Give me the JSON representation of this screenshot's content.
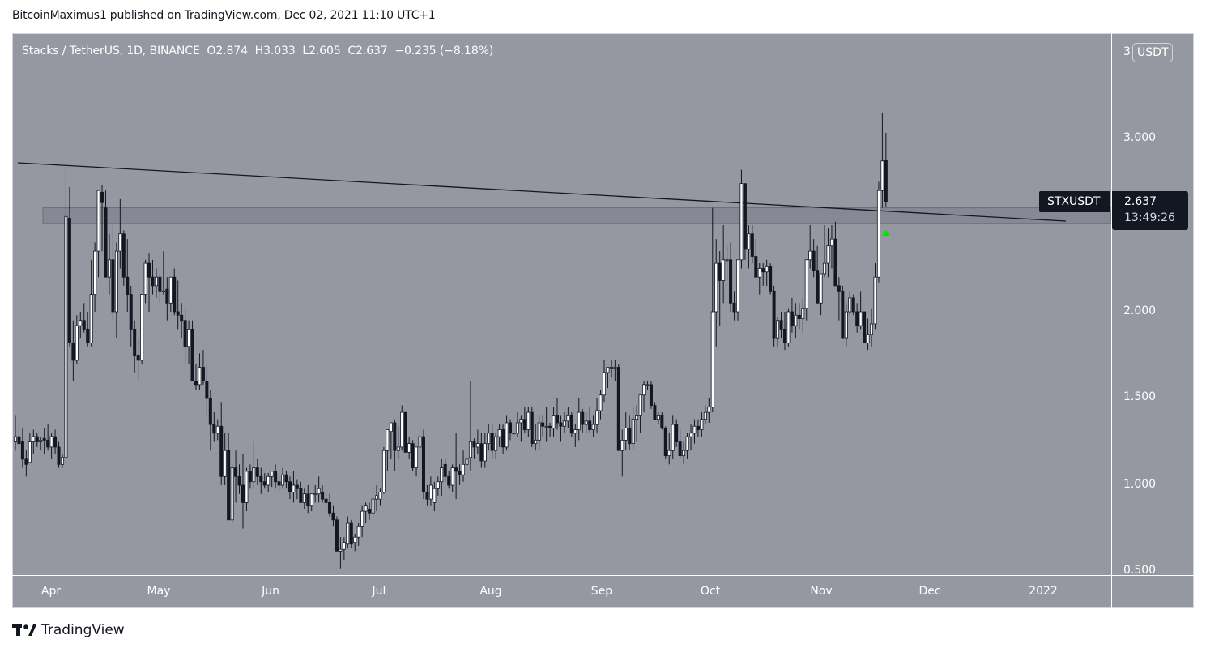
{
  "header": {
    "published": "BitcoinMaximus1 published on TradingView.com, Dec 02, 2021 11:10 UTC+1"
  },
  "legend": {
    "title": "Stacks / TetherUS, 1D, BINANCE",
    "o_label": "O",
    "o": "2.874",
    "h_label": "H",
    "h": "3.033",
    "l_label": "L",
    "l": "2.605",
    "c_label": "C",
    "c": "2.637",
    "change": "−0.235 (−8.18%)"
  },
  "price_axis": {
    "currency_label": "USDT",
    "currency_prefix": "3",
    "ticks": [
      "3.000",
      "2.000",
      "1.500",
      "1.000",
      "0.500"
    ]
  },
  "time_axis": {
    "ticks": [
      "Apr",
      "May",
      "Jun",
      "Jul",
      "Aug",
      "Sep",
      "Oct",
      "Nov",
      "Dec",
      "2022"
    ]
  },
  "price_tag": {
    "symbol": "STXUSDT",
    "price": "2.637",
    "countdown": "13:49:26"
  },
  "brand": {
    "logo": "TV",
    "name": "TradingView"
  },
  "colors": {
    "background": "#9598a1",
    "up_candle": "#ffffff",
    "down_candle": "#131722",
    "wick": "#131722",
    "zone_fill": "#868993",
    "arrow": "#00e600"
  },
  "chart_data": {
    "type": "candlestick",
    "title": "Stacks / TetherUS, 1D, BINANCE",
    "xlabel": "",
    "ylabel": "USDT",
    "ylim": [
      0.48,
      3.55
    ],
    "x_ticks": [
      "Apr",
      "May",
      "Jun",
      "Jul",
      "Aug",
      "Sep",
      "Oct",
      "Nov",
      "Dec",
      "2022"
    ],
    "y_ticks": [
      0.5,
      1.0,
      1.5,
      2.0,
      3.0
    ],
    "last": {
      "open": 2.874,
      "high": 3.033,
      "low": 2.605,
      "close": 2.637,
      "change": -0.235,
      "change_pct": -8.18
    },
    "annotations": [
      {
        "type": "descending_trendline",
        "from": {
          "date": "2021-03-20",
          "price": 2.83
        },
        "to": {
          "date": "2022-01-07",
          "price": 2.51
        }
      },
      {
        "type": "horizontal_zone",
        "from_date": "2021-03-29",
        "price_low": 2.51,
        "price_high": 2.6
      },
      {
        "type": "arrow_up",
        "date": "2021-12-02",
        "price": 2.48,
        "color": "#00e600"
      }
    ],
    "candles": [
      [
        1.25,
        1.4,
        1.2,
        1.28
      ],
      [
        1.28,
        1.37,
        1.22,
        1.24
      ],
      [
        1.25,
        1.33,
        1.1,
        1.15
      ],
      [
        1.15,
        1.2,
        1.05,
        1.12
      ],
      [
        1.13,
        1.3,
        1.13,
        1.25
      ],
      [
        1.25,
        1.32,
        1.18,
        1.28
      ],
      [
        1.28,
        1.3,
        1.22,
        1.25
      ],
      [
        1.25,
        1.28,
        1.2,
        1.26
      ],
      [
        1.27,
        1.33,
        1.18,
        1.26
      ],
      [
        1.26,
        1.35,
        1.2,
        1.22
      ],
      [
        1.22,
        1.3,
        1.15,
        1.28
      ],
      [
        1.28,
        1.32,
        1.18,
        1.22
      ],
      [
        1.22,
        1.25,
        1.1,
        1.12
      ],
      [
        1.12,
        1.18,
        1.1,
        1.16
      ],
      [
        1.16,
        2.85,
        1.12,
        2.55
      ],
      [
        2.54,
        2.72,
        1.8,
        1.82
      ],
      [
        1.82,
        1.95,
        1.6,
        1.72
      ],
      [
        1.72,
        1.98,
        1.7,
        1.92
      ],
      [
        1.92,
        2.0,
        1.85,
        1.95
      ],
      [
        1.95,
        2.05,
        1.88,
        1.9
      ],
      [
        1.9,
        2.0,
        1.8,
        1.82
      ],
      [
        1.82,
        2.3,
        1.8,
        2.1
      ],
      [
        2.1,
        2.4,
        2.0,
        2.35
      ],
      [
        2.35,
        2.65,
        2.2,
        2.7
      ],
      [
        2.69,
        2.73,
        2.35,
        2.63
      ],
      [
        2.6,
        2.7,
        2.2,
        2.2
      ],
      [
        2.2,
        2.45,
        2.1,
        2.3
      ],
      [
        2.3,
        2.5,
        1.95,
        2.0
      ],
      [
        2.0,
        2.4,
        1.85,
        2.35
      ],
      [
        2.35,
        2.65,
        2.25,
        2.45
      ],
      [
        2.45,
        2.47,
        2.15,
        2.2
      ],
      [
        2.2,
        2.42,
        2.0,
        2.1
      ],
      [
        2.1,
        2.15,
        1.8,
        1.9
      ],
      [
        1.9,
        1.95,
        1.65,
        1.75
      ],
      [
        1.75,
        1.85,
        1.6,
        1.72
      ],
      [
        1.72,
        2.05,
        1.7,
        2.1
      ],
      [
        2.1,
        2.3,
        2.05,
        2.28
      ],
      [
        2.28,
        2.34,
        2.0,
        2.2
      ],
      [
        2.2,
        2.3,
        2.1,
        2.15
      ],
      [
        2.15,
        2.25,
        2.08,
        2.2
      ],
      [
        2.2,
        2.22,
        2.05,
        2.12
      ],
      [
        2.12,
        2.35,
        2.1,
        2.12
      ],
      [
        2.13,
        2.2,
        1.95,
        2.05
      ],
      [
        2.05,
        2.2,
        2.0,
        2.2
      ],
      [
        2.2,
        2.25,
        1.98,
        2.0
      ],
      [
        2.0,
        2.18,
        1.9,
        1.98
      ],
      [
        1.98,
        2.05,
        1.85,
        1.95
      ],
      [
        1.95,
        2.02,
        1.7,
        1.8
      ],
      [
        1.8,
        1.95,
        1.7,
        1.9
      ],
      [
        1.9,
        1.95,
        1.6,
        1.6
      ],
      [
        1.6,
        1.7,
        1.55,
        1.58
      ],
      [
        1.58,
        1.76,
        1.55,
        1.68
      ],
      [
        1.68,
        1.78,
        1.58,
        1.6
      ],
      [
        1.6,
        1.7,
        1.4,
        1.5
      ],
      [
        1.5,
        1.55,
        1.2,
        1.35
      ],
      [
        1.35,
        1.42,
        1.25,
        1.3
      ],
      [
        1.3,
        1.38,
        1.26,
        1.34
      ],
      [
        1.34,
        1.48,
        1.0,
        1.05
      ],
      [
        1.05,
        1.3,
        1.0,
        1.2
      ],
      [
        1.2,
        1.3,
        0.8,
        0.8
      ],
      [
        0.8,
        1.12,
        0.78,
        1.1
      ],
      [
        1.1,
        1.2,
        0.9,
        1.05
      ],
      [
        1.05,
        1.12,
        0.95,
        1.0
      ],
      [
        1.0,
        1.18,
        0.75,
        0.9
      ],
      [
        0.9,
        1.1,
        0.85,
        1.08
      ],
      [
        1.08,
        1.12,
        0.98,
        1.02
      ],
      [
        1.02,
        1.25,
        0.98,
        1.1
      ],
      [
        1.1,
        1.15,
        1.0,
        1.05
      ],
      [
        1.05,
        1.1,
        0.95,
        1.02
      ],
      [
        1.02,
        1.07,
        0.98,
        1.0
      ],
      [
        1.0,
        1.07,
        0.96,
        1.05
      ],
      [
        1.05,
        1.08,
        0.99,
        1.08
      ],
      [
        1.08,
        1.12,
        0.98,
        1.02
      ],
      [
        1.02,
        1.05,
        0.96,
        1.0
      ],
      [
        1.0,
        1.1,
        0.98,
        1.06
      ],
      [
        1.06,
        1.08,
        0.98,
        1.02
      ],
      [
        1.02,
        1.05,
        0.92,
        0.96
      ],
      [
        0.96,
        1.08,
        0.9,
        1.0
      ],
      [
        1.0,
        1.03,
        0.92,
        0.98
      ],
      [
        0.98,
        1.02,
        0.9,
        0.9
      ],
      [
        0.9,
        0.98,
        0.86,
        0.95
      ],
      [
        0.95,
        1.0,
        0.84,
        0.88
      ],
      [
        0.88,
        0.95,
        0.85,
        0.95
      ],
      [
        0.95,
        1.0,
        0.9,
        0.95
      ],
      [
        0.95,
        1.05,
        0.9,
        0.98
      ],
      [
        0.96,
        1.0,
        0.9,
        0.92
      ],
      [
        0.92,
        0.95,
        0.85,
        0.9
      ],
      [
        0.9,
        0.95,
        0.82,
        0.84
      ],
      [
        0.84,
        0.88,
        0.76,
        0.8
      ],
      [
        0.8,
        0.82,
        0.62,
        0.62
      ],
      [
        0.62,
        0.7,
        0.52,
        0.63
      ],
      [
        0.63,
        0.7,
        0.57,
        0.67
      ],
      [
        0.66,
        0.82,
        0.64,
        0.78
      ],
      [
        0.78,
        0.8,
        0.64,
        0.66
      ],
      [
        0.67,
        0.72,
        0.62,
        0.7
      ],
      [
        0.7,
        0.78,
        0.65,
        0.76
      ],
      [
        0.76,
        0.88,
        0.7,
        0.85
      ],
      [
        0.85,
        0.9,
        0.78,
        0.88
      ],
      [
        0.86,
        0.9,
        0.8,
        0.84
      ],
      [
        0.84,
        0.98,
        0.82,
        0.92
      ],
      [
        0.92,
        1.0,
        0.85,
        0.94
      ],
      [
        0.92,
        0.98,
        0.88,
        0.96
      ],
      [
        0.96,
        1.22,
        0.95,
        1.2
      ],
      [
        1.2,
        1.3,
        1.08,
        1.32
      ],
      [
        1.31,
        1.35,
        1.15,
        1.36
      ],
      [
        1.36,
        1.38,
        1.08,
        1.2
      ],
      [
        1.2,
        1.34,
        1.15,
        1.22
      ],
      [
        1.22,
        1.46,
        1.2,
        1.42
      ],
      [
        1.42,
        1.42,
        1.19,
        1.19
      ],
      [
        1.19,
        1.28,
        1.15,
        1.24
      ],
      [
        1.24,
        1.26,
        1.08,
        1.1
      ],
      [
        1.1,
        1.2,
        1.05,
        1.22
      ],
      [
        1.22,
        1.35,
        1.18,
        1.28
      ],
      [
        1.28,
        1.32,
        0.92,
        0.96
      ],
      [
        0.96,
        1.0,
        0.88,
        0.92
      ],
      [
        0.92,
        1.05,
        0.88,
        1.0
      ],
      [
        0.9,
        1.02,
        0.85,
        0.98
      ],
      [
        0.98,
        1.05,
        0.94,
        1.02
      ],
      [
        1.02,
        1.15,
        0.94,
        1.1
      ],
      [
        1.12,
        1.15,
        1.02,
        1.05
      ],
      [
        1.05,
        1.08,
        0.98,
        1.0
      ],
      [
        1.0,
        1.12,
        0.96,
        1.1
      ],
      [
        1.1,
        1.3,
        0.92,
        1.08
      ],
      [
        1.08,
        1.12,
        1.0,
        1.06
      ],
      [
        1.06,
        1.2,
        1.02,
        1.12
      ],
      [
        1.12,
        1.2,
        1.06,
        1.15
      ],
      [
        1.16,
        1.6,
        1.08,
        1.25
      ],
      [
        1.25,
        1.27,
        1.15,
        1.22
      ],
      [
        1.22,
        1.32,
        1.18,
        1.24
      ],
      [
        1.24,
        1.3,
        1.1,
        1.14
      ],
      [
        1.14,
        1.3,
        1.1,
        1.24
      ],
      [
        1.24,
        1.35,
        1.2,
        1.3
      ],
      [
        1.3,
        1.35,
        1.15,
        1.2
      ],
      [
        1.2,
        1.3,
        1.15,
        1.28
      ],
      [
        1.28,
        1.35,
        1.22,
        1.32
      ],
      [
        1.32,
        1.35,
        1.18,
        1.22
      ],
      [
        1.22,
        1.4,
        1.2,
        1.36
      ],
      [
        1.36,
        1.38,
        1.26,
        1.3
      ],
      [
        1.3,
        1.4,
        1.25,
        1.3
      ],
      [
        1.3,
        1.42,
        1.28,
        1.36
      ],
      [
        1.36,
        1.4,
        1.25,
        1.38
      ],
      [
        1.38,
        1.45,
        1.3,
        1.32
      ],
      [
        1.32,
        1.45,
        1.28,
        1.42
      ],
      [
        1.42,
        1.45,
        1.22,
        1.24
      ],
      [
        1.24,
        1.35,
        1.2,
        1.26
      ],
      [
        1.26,
        1.4,
        1.2,
        1.36
      ],
      [
        1.36,
        1.4,
        1.28,
        1.34
      ],
      [
        1.34,
        1.45,
        1.25,
        1.34
      ],
      [
        1.34,
        1.36,
        1.28,
        1.33
      ],
      [
        1.33,
        1.45,
        1.28,
        1.4
      ],
      [
        1.4,
        1.5,
        1.32,
        1.36
      ],
      [
        1.36,
        1.4,
        1.25,
        1.34
      ],
      [
        1.34,
        1.42,
        1.3,
        1.37
      ],
      [
        1.37,
        1.45,
        1.33,
        1.4
      ],
      [
        1.4,
        1.42,
        1.28,
        1.3
      ],
      [
        1.3,
        1.35,
        1.22,
        1.32
      ],
      [
        1.32,
        1.5,
        1.26,
        1.42
      ],
      [
        1.42,
        1.44,
        1.3,
        1.35
      ],
      [
        1.35,
        1.42,
        1.3,
        1.37
      ],
      [
        1.37,
        1.45,
        1.3,
        1.32
      ],
      [
        1.32,
        1.4,
        1.28,
        1.35
      ],
      [
        1.35,
        1.5,
        1.3,
        1.43
      ],
      [
        1.43,
        1.55,
        1.38,
        1.52
      ],
      [
        1.52,
        1.72,
        1.48,
        1.65
      ],
      [
        1.65,
        1.68,
        1.56,
        1.68
      ],
      [
        1.68,
        1.72,
        1.62,
        1.68
      ],
      [
        1.68,
        1.72,
        1.6,
        1.68
      ],
      [
        1.68,
        1.7,
        1.2,
        1.2
      ],
      [
        1.2,
        1.32,
        1.05,
        1.26
      ],
      [
        1.26,
        1.42,
        1.2,
        1.33
      ],
      [
        1.33,
        1.4,
        1.2,
        1.24
      ],
      [
        1.24,
        1.45,
        1.2,
        1.38
      ],
      [
        1.38,
        1.46,
        1.25,
        1.4
      ],
      [
        1.4,
        1.52,
        1.3,
        1.52
      ],
      [
        1.52,
        1.6,
        1.42,
        1.58
      ],
      [
        1.58,
        1.6,
        1.55,
        1.58
      ],
      [
        1.58,
        1.6,
        1.44,
        1.46
      ],
      [
        1.46,
        1.48,
        1.38,
        1.38
      ],
      [
        1.38,
        1.42,
        1.35,
        1.4
      ],
      [
        1.4,
        1.42,
        1.32,
        1.33
      ],
      [
        1.33,
        1.34,
        1.15,
        1.17
      ],
      [
        1.17,
        1.3,
        1.12,
        1.2
      ],
      [
        1.2,
        1.4,
        1.15,
        1.35
      ],
      [
        1.35,
        1.38,
        1.22,
        1.25
      ],
      [
        1.25,
        1.32,
        1.15,
        1.17
      ],
      [
        1.17,
        1.25,
        1.12,
        1.2
      ],
      [
        1.2,
        1.3,
        1.15,
        1.28
      ],
      [
        1.28,
        1.35,
        1.2,
        1.3
      ],
      [
        1.3,
        1.38,
        1.24,
        1.34
      ],
      [
        1.34,
        1.38,
        1.28,
        1.32
      ],
      [
        1.32,
        1.42,
        1.28,
        1.38
      ],
      [
        1.38,
        1.46,
        1.35,
        1.42
      ],
      [
        1.42,
        1.5,
        1.36,
        1.45
      ],
      [
        1.45,
        2.6,
        1.42,
        2.0
      ],
      [
        2.0,
        2.42,
        1.8,
        2.28
      ],
      [
        2.28,
        2.35,
        1.92,
        2.18
      ],
      [
        2.18,
        2.5,
        2.05,
        2.3
      ],
      [
        2.3,
        2.38,
        2.18,
        2.3
      ],
      [
        2.3,
        2.4,
        2.0,
        2.05
      ],
      [
        2.05,
        2.12,
        1.95,
        2.0
      ],
      [
        2.0,
        2.28,
        1.95,
        2.3
      ],
      [
        2.3,
        2.82,
        2.25,
        2.74
      ],
      [
        2.74,
        2.65,
        2.3,
        2.36
      ],
      [
        2.36,
        2.5,
        2.25,
        2.45
      ],
      [
        2.45,
        2.5,
        2.28,
        2.32
      ],
      [
        2.32,
        2.42,
        2.2,
        2.2
      ],
      [
        2.2,
        2.28,
        2.1,
        2.25
      ],
      [
        2.25,
        2.28,
        2.15,
        2.23
      ],
      [
        2.23,
        2.3,
        2.15,
        2.26
      ],
      [
        2.26,
        2.28,
        2.1,
        2.12
      ],
      [
        2.12,
        2.15,
        1.8,
        1.85
      ],
      [
        1.85,
        1.97,
        1.8,
        1.95
      ],
      [
        1.95,
        2.0,
        1.85,
        1.9
      ],
      [
        1.9,
        2.0,
        1.78,
        1.82
      ],
      [
        1.82,
        2.02,
        1.8,
        2.0
      ],
      [
        2.0,
        2.08,
        1.88,
        1.92
      ],
      [
        1.92,
        2.05,
        1.85,
        1.98
      ],
      [
        1.98,
        2.05,
        1.9,
        1.96
      ],
      [
        1.96,
        2.08,
        1.88,
        2.02
      ],
      [
        2.02,
        2.2,
        1.95,
        2.3
      ],
      [
        2.3,
        2.5,
        2.25,
        2.35
      ],
      [
        2.35,
        2.42,
        2.2,
        2.24
      ],
      [
        2.24,
        2.38,
        2.1,
        2.05
      ],
      [
        2.05,
        2.2,
        1.98,
        2.22
      ],
      [
        2.22,
        2.5,
        2.2,
        2.28
      ],
      [
        2.28,
        2.48,
        2.2,
        2.38
      ],
      [
        2.38,
        2.5,
        2.25,
        2.42
      ],
      [
        2.42,
        2.52,
        2.25,
        2.15
      ],
      [
        2.15,
        2.2,
        1.95,
        2.12
      ],
      [
        2.12,
        2.15,
        1.92,
        1.85
      ],
      [
        1.85,
        2.05,
        1.8,
        2.0
      ],
      [
        2.0,
        2.12,
        1.98,
        2.08
      ],
      [
        2.08,
        2.1,
        1.98,
        2.0
      ],
      [
        2.0,
        2.05,
        1.88,
        1.92
      ],
      [
        1.92,
        2.12,
        1.9,
        2.0
      ],
      [
        2.0,
        2.0,
        1.82,
        1.82
      ],
      [
        1.82,
        1.96,
        1.78,
        1.87
      ],
      [
        1.87,
        2.02,
        1.8,
        1.93
      ],
      [
        1.93,
        2.28,
        1.9,
        2.2
      ],
      [
        2.2,
        2.75,
        2.17,
        2.7
      ],
      [
        2.7,
        3.15,
        2.6,
        2.87
      ],
      [
        2.874,
        3.033,
        2.605,
        2.637
      ]
    ]
  }
}
